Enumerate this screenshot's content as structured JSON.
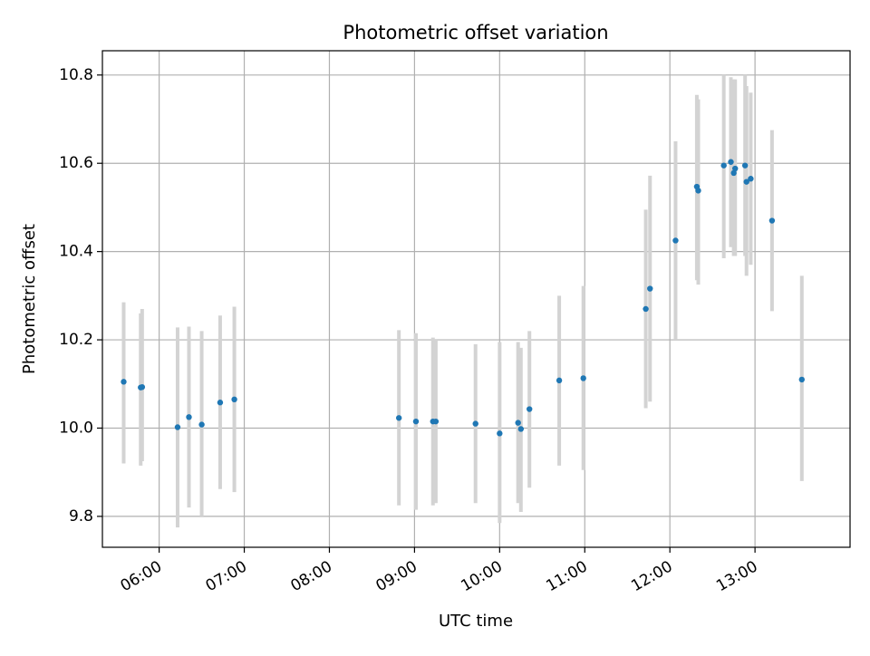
{
  "chart_data": {
    "type": "scatter",
    "title": "Photometric offset variation",
    "xlabel": "UTC time",
    "ylabel": "Photometric offset",
    "x_ticks": [
      "06:00",
      "07:00",
      "08:00",
      "09:00",
      "10:00",
      "11:00",
      "12:00",
      "13:00"
    ],
    "y_ticks": [
      "9.8",
      "10.0",
      "10.2",
      "10.4",
      "10.6",
      "10.8"
    ],
    "xlim": [
      "05:20",
      "14:07"
    ],
    "ylim": [
      9.73,
      10.855
    ],
    "grid": true,
    "colors": {
      "points": "#1f77b4",
      "errorbars": "#d3d3d3",
      "grid": "#b0b0b0"
    },
    "points": [
      {
        "t": "05:35",
        "y": 10.105,
        "lo": 9.92,
        "hi": 10.285
      },
      {
        "t": "05:47",
        "y": 10.092,
        "lo": 9.915,
        "hi": 10.26
      },
      {
        "t": "05:48",
        "y": 10.093,
        "lo": 9.925,
        "hi": 10.27
      },
      {
        "t": "06:13",
        "y": 10.002,
        "lo": 9.775,
        "hi": 10.228
      },
      {
        "t": "06:21",
        "y": 10.025,
        "lo": 9.82,
        "hi": 10.23
      },
      {
        "t": "06:30",
        "y": 10.008,
        "lo": 9.8,
        "hi": 10.22
      },
      {
        "t": "06:43",
        "y": 10.058,
        "lo": 9.862,
        "hi": 10.255
      },
      {
        "t": "06:53",
        "y": 10.065,
        "lo": 9.855,
        "hi": 10.275
      },
      {
        "t": "08:49",
        "y": 10.023,
        "lo": 9.825,
        "hi": 10.222
      },
      {
        "t": "09:01",
        "y": 10.015,
        "lo": 9.815,
        "hi": 10.215
      },
      {
        "t": "09:13",
        "y": 10.015,
        "lo": 9.825,
        "hi": 10.205
      },
      {
        "t": "09:15",
        "y": 10.015,
        "lo": 9.83,
        "hi": 10.2
      },
      {
        "t": "09:43",
        "y": 10.01,
        "lo": 9.83,
        "hi": 10.19
      },
      {
        "t": "10:00",
        "y": 9.988,
        "lo": 9.785,
        "hi": 10.195
      },
      {
        "t": "10:13",
        "y": 10.012,
        "lo": 9.83,
        "hi": 10.195
      },
      {
        "t": "10:15",
        "y": 9.998,
        "lo": 9.81,
        "hi": 10.182
      },
      {
        "t": "10:21",
        "y": 10.043,
        "lo": 9.865,
        "hi": 10.22
      },
      {
        "t": "10:42",
        "y": 10.108,
        "lo": 9.915,
        "hi": 10.3
      },
      {
        "t": "10:59",
        "y": 10.113,
        "lo": 9.905,
        "hi": 10.322
      },
      {
        "t": "11:43",
        "y": 10.27,
        "lo": 10.045,
        "hi": 10.495
      },
      {
        "t": "11:46",
        "y": 10.316,
        "lo": 10.06,
        "hi": 10.572
      },
      {
        "t": "12:04",
        "y": 10.425,
        "lo": 10.2,
        "hi": 10.65
      },
      {
        "t": "12:19",
        "y": 10.547,
        "lo": 10.335,
        "hi": 10.755
      },
      {
        "t": "12:20",
        "y": 10.538,
        "lo": 10.325,
        "hi": 10.745
      },
      {
        "t": "12:38",
        "y": 10.595,
        "lo": 10.385,
        "hi": 10.8
      },
      {
        "t": "12:43",
        "y": 10.603,
        "lo": 10.41,
        "hi": 10.795
      },
      {
        "t": "12:45",
        "y": 10.578,
        "lo": 10.39,
        "hi": 10.79
      },
      {
        "t": "12:46",
        "y": 10.588,
        "lo": 10.39,
        "hi": 10.79
      },
      {
        "t": "12:53",
        "y": 10.595,
        "lo": 10.39,
        "hi": 10.8
      },
      {
        "t": "12:54",
        "y": 10.558,
        "lo": 10.345,
        "hi": 10.775
      },
      {
        "t": "12:57",
        "y": 10.565,
        "lo": 10.37,
        "hi": 10.76
      },
      {
        "t": "13:12",
        "y": 10.47,
        "lo": 10.265,
        "hi": 10.675
      },
      {
        "t": "13:33",
        "y": 10.11,
        "lo": 9.88,
        "hi": 10.345
      }
    ]
  }
}
